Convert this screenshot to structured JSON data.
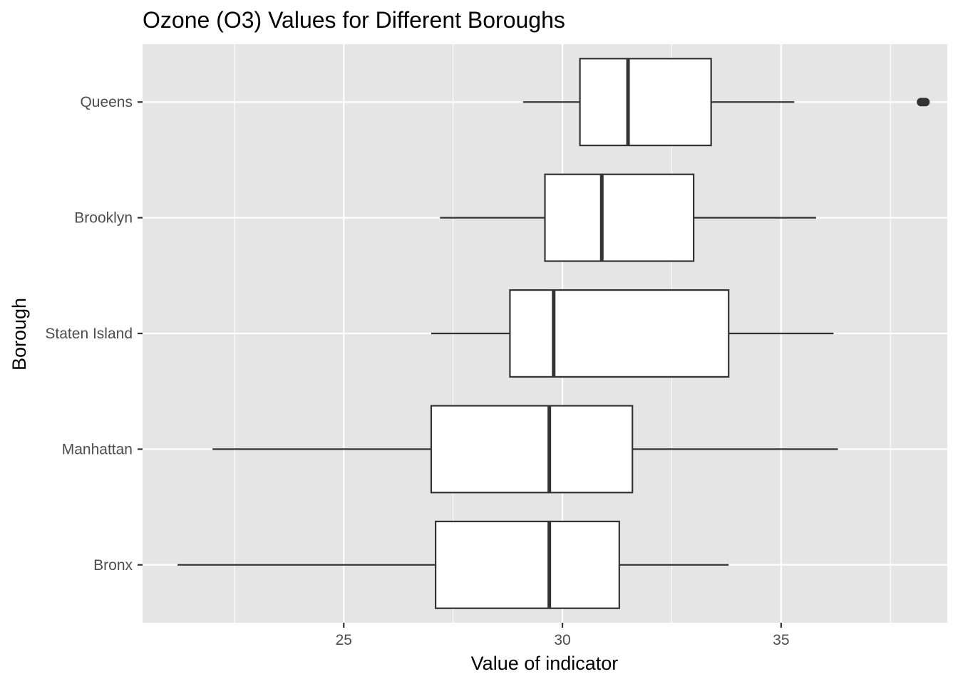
{
  "chart_data": {
    "type": "boxplot",
    "orientation": "horizontal",
    "title": "Ozone (O3) Values for Different Boroughs",
    "xlabel": "Value of indicator",
    "ylabel": "Borough",
    "xlim": [
      20.4,
      38.8
    ],
    "x_ticks": [
      25,
      30,
      35
    ],
    "x_tick_labels": [
      "25",
      "30",
      "35"
    ],
    "grid": true,
    "panel_background": "#e5e5e5",
    "box_fill": "#ffffff",
    "line_color": "#333333",
    "categories": [
      "Bronx",
      "Manhattan",
      "Staten Island",
      "Brooklyn",
      "Queens"
    ],
    "boxes": [
      {
        "category": "Bronx",
        "whisker_low": 21.2,
        "q1": 27.1,
        "median": 29.7,
        "q3": 31.3,
        "whisker_high": 33.8,
        "outliers": []
      },
      {
        "category": "Manhattan",
        "whisker_low": 22.0,
        "q1": 27.0,
        "median": 29.7,
        "q3": 31.6,
        "whisker_high": 36.3,
        "outliers": []
      },
      {
        "category": "Staten Island",
        "whisker_low": 27.0,
        "q1": 28.8,
        "median": 29.8,
        "q3": 33.8,
        "whisker_high": 36.2,
        "outliers": []
      },
      {
        "category": "Brooklyn",
        "whisker_low": 27.2,
        "q1": 29.6,
        "median": 30.9,
        "q3": 33.0,
        "whisker_high": 35.8,
        "outliers": []
      },
      {
        "category": "Queens",
        "whisker_low": 29.1,
        "q1": 30.4,
        "median": 31.5,
        "q3": 33.4,
        "whisker_high": 35.3,
        "outliers": [
          38.2,
          38.25,
          38.3
        ]
      }
    ]
  }
}
